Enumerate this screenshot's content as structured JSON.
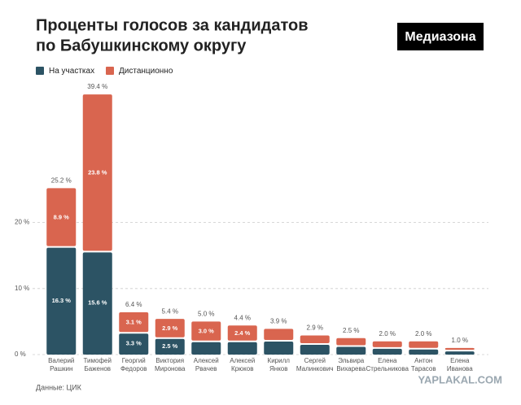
{
  "chart_data": {
    "type": "bar",
    "stacked": true,
    "title": [
      "Проценты голосов за кандидатов",
      "по Бабушкинскому округу"
    ],
    "brand": "Медиазона",
    "source": "Данные: ЦИК",
    "watermark": "YAPLAKAL.COM",
    "categories": [
      [
        "Валерий",
        "Рашкин"
      ],
      [
        "Тимофей",
        "Баженов"
      ],
      [
        "Георгий",
        "Федоров"
      ],
      [
        "Виктория",
        "Миронова"
      ],
      [
        "Алексей",
        "Рвачев"
      ],
      [
        "Алексей",
        "Крюков"
      ],
      [
        "Кирилл",
        "Янков"
      ],
      [
        "Сергей",
        "Малинкович"
      ],
      [
        "Эльвира",
        "Вихарева"
      ],
      [
        "Елена",
        "Стрельникова"
      ],
      [
        "Антон",
        "Тарасов"
      ],
      [
        "Елена",
        "Иванова"
      ]
    ],
    "series": [
      {
        "name": "На участках",
        "color": "#2c5364",
        "values": [
          16.3,
          15.6,
          3.3,
          2.5,
          2.0,
          2.0,
          2.1,
          1.6,
          1.3,
          1.0,
          0.9,
          0.6
        ],
        "value_labels": [
          "16.3 %",
          "15.6 %",
          "3.3 %",
          "2.5 %",
          null,
          null,
          null,
          null,
          null,
          null,
          null,
          null
        ]
      },
      {
        "name": "Дистанционно",
        "color": "#d9654f",
        "values": [
          8.9,
          23.8,
          3.1,
          2.9,
          3.0,
          2.4,
          1.8,
          1.3,
          1.2,
          1.0,
          1.1,
          0.4
        ],
        "value_labels": [
          "8.9 %",
          "23.8 %",
          "3.1 %",
          "2.9 %",
          "3.0 %",
          "2.4 %",
          null,
          null,
          null,
          null,
          null,
          null
        ]
      }
    ],
    "totals": [
      25.2,
      39.4,
      6.4,
      5.4,
      5.0,
      4.4,
      3.9,
      2.9,
      2.5,
      2.0,
      2.0,
      1.0
    ],
    "total_labels": [
      "25.2 %",
      "39.4 %",
      "6.4 %",
      "5.4 %",
      "5.0 %",
      "4.4 %",
      "3.9 %",
      "2.9 %",
      "2.5 %",
      "2.0 %",
      "2.0 %",
      "1.0 %"
    ],
    "ylim": [
      0,
      42
    ],
    "yticks": [
      {
        "value": 0,
        "label": "0 %"
      },
      {
        "value": 10,
        "label": "10 %"
      },
      {
        "value": 20,
        "label": "20 %"
      }
    ],
    "grid": true
  }
}
